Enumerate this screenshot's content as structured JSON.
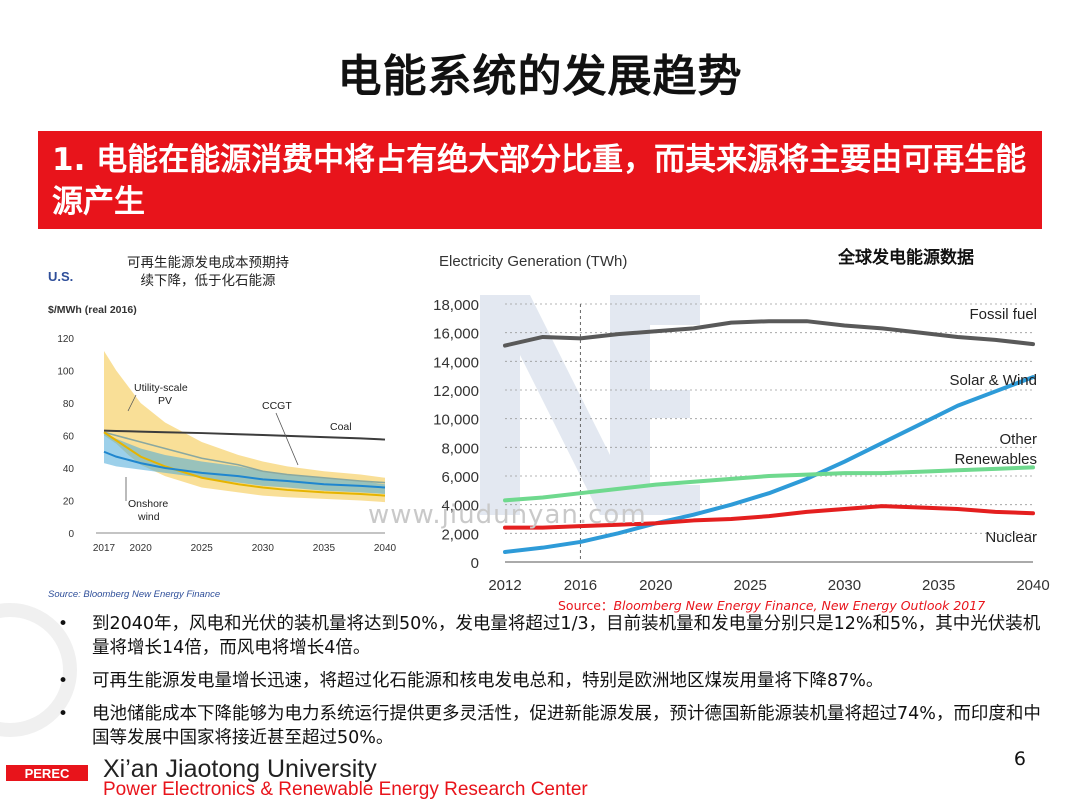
{
  "slide": {
    "title": "电能系统的发展趋势",
    "banner": "1. 电能在能源消费中将占有绝大部分比重，而其来源将主要由可再生能源产生",
    "watermark": "www.jiudunyan.com",
    "page_number": "6"
  },
  "left_chart_annotation": "可再生能源发电成本预期持续下降，低于化石能源",
  "right_chart_annotation": "全球发电能源数据",
  "source_right": {
    "label": "Source：",
    "text": "Bloomberg New Energy Finance, New Energy Outlook 2017"
  },
  "bullets": [
    "到2040年，风电和光伏的装机量将达到50%，发电量将超过1/3，目前装机量和发电量分别只是12%和5%，其中光伏装机量将增长14倍，而风电将增长4倍。",
    "可再生能源发电量增长迅速，将超过化石能源和核电发电总和，特别是欧洲地区煤炭用量将下降87%。",
    "电池储能成本下降能够为电力系统运行提供更多灵活性，促进新能源发展，预计德国新能源装机量将超过74%，而印度和中国等发展中国家将接近甚至超过50%。"
  ],
  "footer": {
    "logo_text": "PEREC",
    "university": "Xi’an Jiaotong University",
    "center": "Power Electronics & Renewable Energy Research Center"
  },
  "colors": {
    "banner_red": "#e8141b",
    "fossil": "#595959",
    "solar_wind": "#2e9bd8",
    "other_renewables": "#6fd98e",
    "nuclear": "#e41f1f",
    "pv_band": "#f4c542",
    "wind_band": "#4aa9d8",
    "coal": "#3c3c3c"
  },
  "chart_data": [
    {
      "type": "area",
      "region_label": "U.S.",
      "ylabel": "$/MWh (real 2016)",
      "x": [
        2017,
        2018,
        2019,
        2020,
        2022,
        2025,
        2028,
        2030,
        2032,
        2035,
        2038,
        2040
      ],
      "xticks": [
        2017,
        2020,
        2025,
        2030,
        2035,
        2040
      ],
      "yticks": [
        0,
        20,
        40,
        60,
        80,
        100,
        120
      ],
      "ylim": [
        0,
        120
      ],
      "source": "Source: Bloomberg New Energy Finance",
      "series": [
        {
          "name": "Coal",
          "values": [
            63,
            62.8,
            62.6,
            62.4,
            62,
            61.5,
            60.8,
            60.3,
            59.8,
            59,
            58.2,
            57.5
          ]
        },
        {
          "name": "CCGT",
          "values": [
            62,
            60,
            58,
            56,
            52,
            46,
            42,
            38,
            36,
            34,
            32,
            31
          ]
        },
        {
          "name": "Utility-scale PV",
          "values": [
            62,
            57,
            52,
            47,
            41,
            34,
            30,
            28,
            26.5,
            25,
            24,
            23
          ]
        },
        {
          "name": "Onshore wind",
          "values": [
            50,
            47,
            45,
            43,
            40,
            37,
            35,
            33,
            32,
            30,
            29,
            28
          ]
        }
      ],
      "bands": [
        {
          "name": "Utility-scale PV",
          "upper": [
            112,
            100,
            90,
            80,
            68,
            56,
            48,
            44,
            41,
            38,
            36,
            34
          ],
          "lower": [
            60,
            55,
            48,
            42,
            35,
            28,
            25,
            23,
            22,
            21,
            20,
            19
          ]
        },
        {
          "name": "Onshore wind",
          "upper": [
            62,
            58,
            55,
            52,
            48,
            44,
            41,
            38,
            36,
            34,
            32,
            30
          ],
          "lower": [
            43,
            41,
            40,
            39,
            37,
            34,
            31,
            29,
            28,
            26,
            25,
            24
          ]
        }
      ]
    },
    {
      "type": "line",
      "title": "Electricity Generation (TWh)",
      "x": [
        2012,
        2014,
        2016,
        2018,
        2020,
        2022,
        2024,
        2026,
        2028,
        2030,
        2032,
        2034,
        2036,
        2038,
        2040
      ],
      "xticks": [
        2012,
        2016,
        2020,
        2025,
        2030,
        2035,
        2040
      ],
      "yticks": [
        0,
        2000,
        4000,
        6000,
        8000,
        10000,
        12000,
        14000,
        16000,
        18000
      ],
      "ylim": [
        0,
        18000
      ],
      "grid": true,
      "series": [
        {
          "name": "Fossil fuel",
          "values": [
            15100,
            15700,
            15600,
            15900,
            16100,
            16300,
            16700,
            16800,
            16800,
            16500,
            16300,
            16000,
            15700,
            15500,
            15200
          ]
        },
        {
          "name": "Solar & Wind",
          "values": [
            700,
            1000,
            1400,
            2000,
            2700,
            3300,
            4000,
            4800,
            5800,
            7000,
            8300,
            9600,
            10900,
            11900,
            12900
          ]
        },
        {
          "name": "Other Renewables",
          "values": [
            4300,
            4500,
            4800,
            5100,
            5400,
            5600,
            5800,
            6000,
            6100,
            6200,
            6200,
            6300,
            6400,
            6500,
            6600
          ]
        },
        {
          "name": "Nuclear",
          "values": [
            2400,
            2400,
            2500,
            2600,
            2700,
            2900,
            3000,
            3200,
            3500,
            3700,
            3900,
            3800,
            3700,
            3500,
            3400
          ]
        }
      ]
    }
  ]
}
